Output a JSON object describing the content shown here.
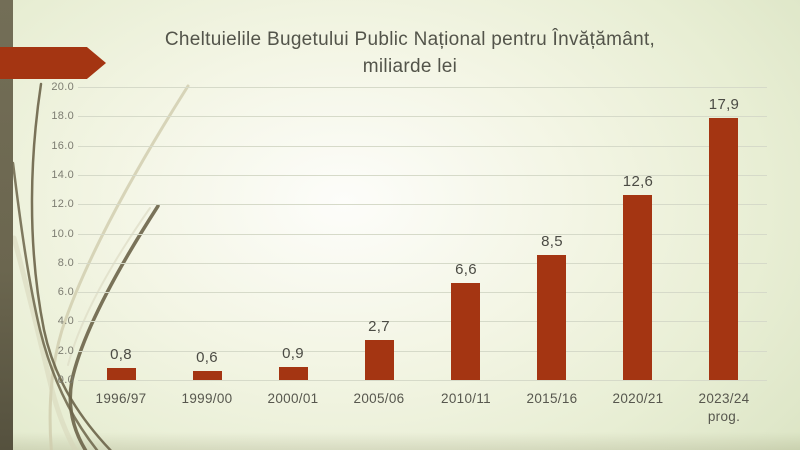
{
  "slide": {
    "title_line1": "Cheltuielile Bugetului Public Național pentru Învățământ,",
    "title_line2": "miliarde lei"
  },
  "colors": {
    "bar": "#a43512",
    "accent_arrow": "#a43512",
    "left_stripe": "#6b664f",
    "gridline": "#d6dac9",
    "title_text": "#53544a",
    "value_label_text": "#4b4b44",
    "axis_tick_text": "#7c7c71",
    "category_text": "#57574e",
    "background_edge": "#dfe7c9"
  },
  "chart_data": {
    "type": "bar",
    "title": "Cheltuielile Bugetului Public Național pentru Învățământ, miliarde lei",
    "categories": [
      "1996/97",
      "1999/00",
      "2000/01",
      "2005/06",
      "2010/11",
      "2015/16",
      "2020/21",
      "2023/24 prog."
    ],
    "values": [
      0.8,
      0.6,
      0.9,
      2.7,
      6.6,
      8.5,
      12.6,
      17.9
    ],
    "value_labels": [
      "0,8",
      "0,6",
      "0,9",
      "2,7",
      "6,6",
      "8,5",
      "12,6",
      "17,9"
    ],
    "xlabel": "",
    "ylabel": "",
    "ylim": [
      0,
      20
    ],
    "ytick_step": 2,
    "ytick_labels": [
      "20.0",
      "18.0",
      "16.0",
      "14.0",
      "12.0",
      "10.0",
      "8.0",
      "6.0",
      "4.0",
      "2.0",
      "0.0"
    ],
    "grid": true,
    "legend": "none",
    "decimal_separator_data_labels": ",",
    "decimal_separator_axis": "."
  }
}
